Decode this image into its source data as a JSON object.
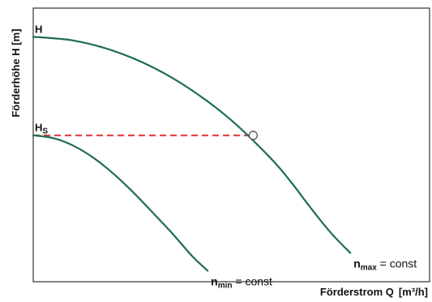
{
  "chart_data": {
    "type": "line",
    "xlabel": "Förderstrom Q",
    "xunit": "[m³/h]",
    "ylabel": "Förderhöhe H [m]",
    "xlim": [
      0,
      1
    ],
    "ylim": [
      0,
      1
    ],
    "grid": false,
    "legend": "none",
    "levels": [
      {
        "symbol": "H",
        "sub": "",
        "y": 0.895
      },
      {
        "symbol": "H",
        "sub": "S",
        "y": 0.535
      }
    ],
    "series": [
      {
        "label": {
          "symbol": "n",
          "sub": "max",
          "text": " = const"
        },
        "color": "#1e6e50",
        "x": [
          0.0,
          0.1,
          0.2,
          0.3,
          0.4,
          0.5,
          0.6,
          0.65,
          0.7,
          0.75,
          0.8
        ],
        "y": [
          0.895,
          0.882,
          0.845,
          0.785,
          0.7,
          0.59,
          0.45,
          0.365,
          0.27,
          0.18,
          0.105
        ]
      },
      {
        "label": {
          "symbol": "n",
          "sub": "min",
          "text": " = const"
        },
        "color": "#1e6e50",
        "x": [
          0.0,
          0.05,
          0.1,
          0.15,
          0.2,
          0.25,
          0.3,
          0.35,
          0.4,
          0.44
        ],
        "y": [
          0.535,
          0.525,
          0.498,
          0.455,
          0.398,
          0.33,
          0.255,
          0.178,
          0.095,
          0.04
        ]
      }
    ],
    "operating_point": {
      "x": 0.555,
      "y": 0.535
    },
    "colors": {
      "frame": "#333333",
      "curve": "#1e6e50",
      "dashed": "#e03030",
      "text": "#111111"
    }
  }
}
